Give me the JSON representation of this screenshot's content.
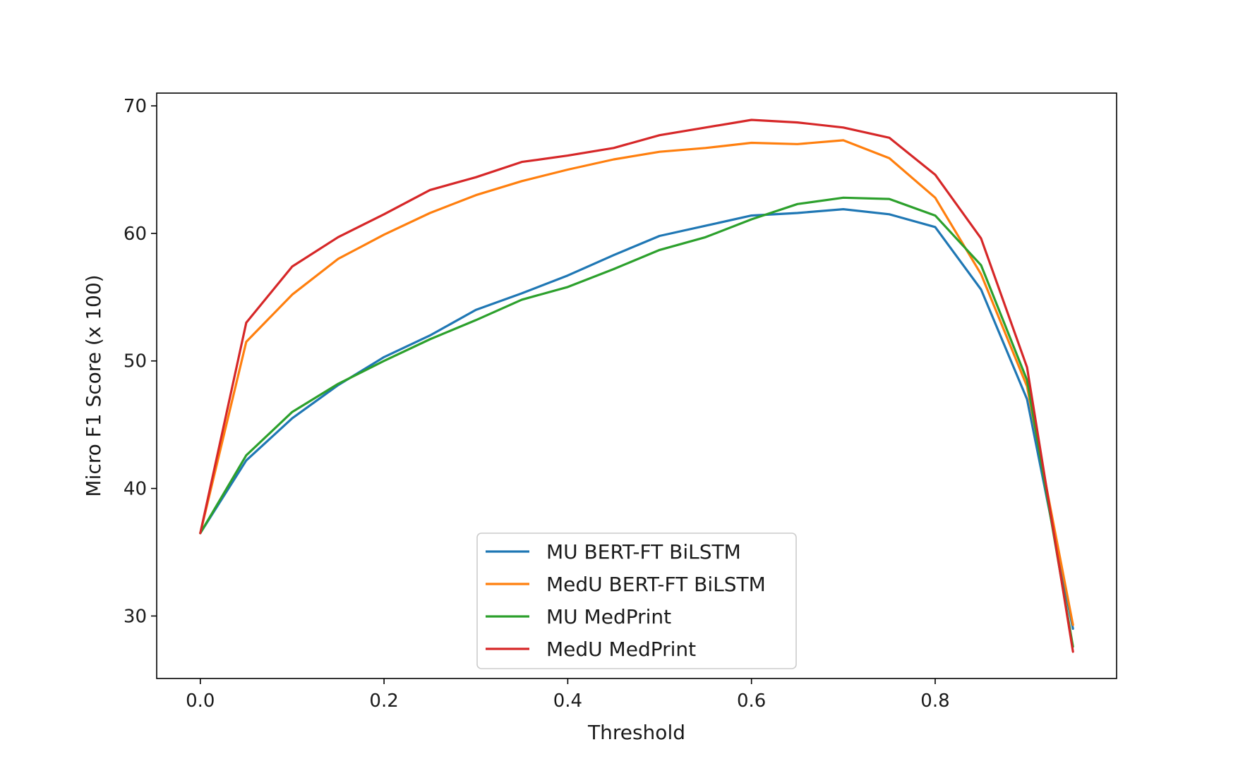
{
  "chart_data": {
    "type": "line",
    "title": "",
    "xlabel": "Threshold",
    "ylabel": "Micro F1 Score (x 100)",
    "xlim": [
      -0.0475,
      0.9975
    ],
    "ylim": [
      25.1,
      71.0
    ],
    "xticks": [
      0.0,
      0.2,
      0.4,
      0.6,
      0.8
    ],
    "xtick_labels": [
      "0.0",
      "0.2",
      "0.4",
      "0.6",
      "0.8"
    ],
    "yticks": [
      30,
      40,
      50,
      60,
      70
    ],
    "ytick_labels": [
      "30",
      "40",
      "50",
      "60",
      "70"
    ],
    "grid": false,
    "legend_position": "lower-center",
    "x": [
      0.0,
      0.05,
      0.1,
      0.15,
      0.2,
      0.25,
      0.3,
      0.35,
      0.4,
      0.45,
      0.5,
      0.55,
      0.6,
      0.65,
      0.7,
      0.75,
      0.8,
      0.85,
      0.9,
      0.95
    ],
    "series": [
      {
        "name": "MU BERT-FT BiLSTM",
        "color": "#1f77b4",
        "values": [
          36.5,
          42.2,
          45.5,
          48.1,
          50.3,
          52.0,
          54.0,
          55.3,
          56.7,
          58.3,
          59.8,
          60.6,
          61.4,
          61.6,
          61.9,
          61.5,
          60.5,
          55.6,
          47.0,
          29.0
        ]
      },
      {
        "name": "MedU BERT-FT BiLSTM",
        "color": "#ff7f0e",
        "values": [
          36.5,
          51.5,
          55.2,
          58.0,
          59.9,
          61.6,
          63.0,
          64.1,
          65.0,
          65.8,
          66.4,
          66.7,
          67.1,
          67.0,
          67.3,
          65.9,
          62.8,
          56.8,
          48.0,
          29.3
        ]
      },
      {
        "name": "MU MedPrint",
        "color": "#2ca02c",
        "values": [
          36.5,
          42.6,
          46.0,
          48.2,
          50.0,
          51.7,
          53.2,
          54.8,
          55.8,
          57.2,
          58.7,
          59.7,
          61.1,
          62.3,
          62.8,
          62.7,
          61.4,
          57.5,
          48.5,
          27.6
        ]
      },
      {
        "name": "MedU MedPrint",
        "color": "#d62728",
        "values": [
          36.5,
          53.0,
          57.4,
          59.7,
          61.5,
          63.4,
          64.4,
          65.6,
          66.1,
          66.7,
          67.7,
          68.3,
          68.9,
          68.7,
          68.3,
          67.5,
          64.6,
          59.6,
          49.5,
          27.2
        ]
      }
    ]
  }
}
